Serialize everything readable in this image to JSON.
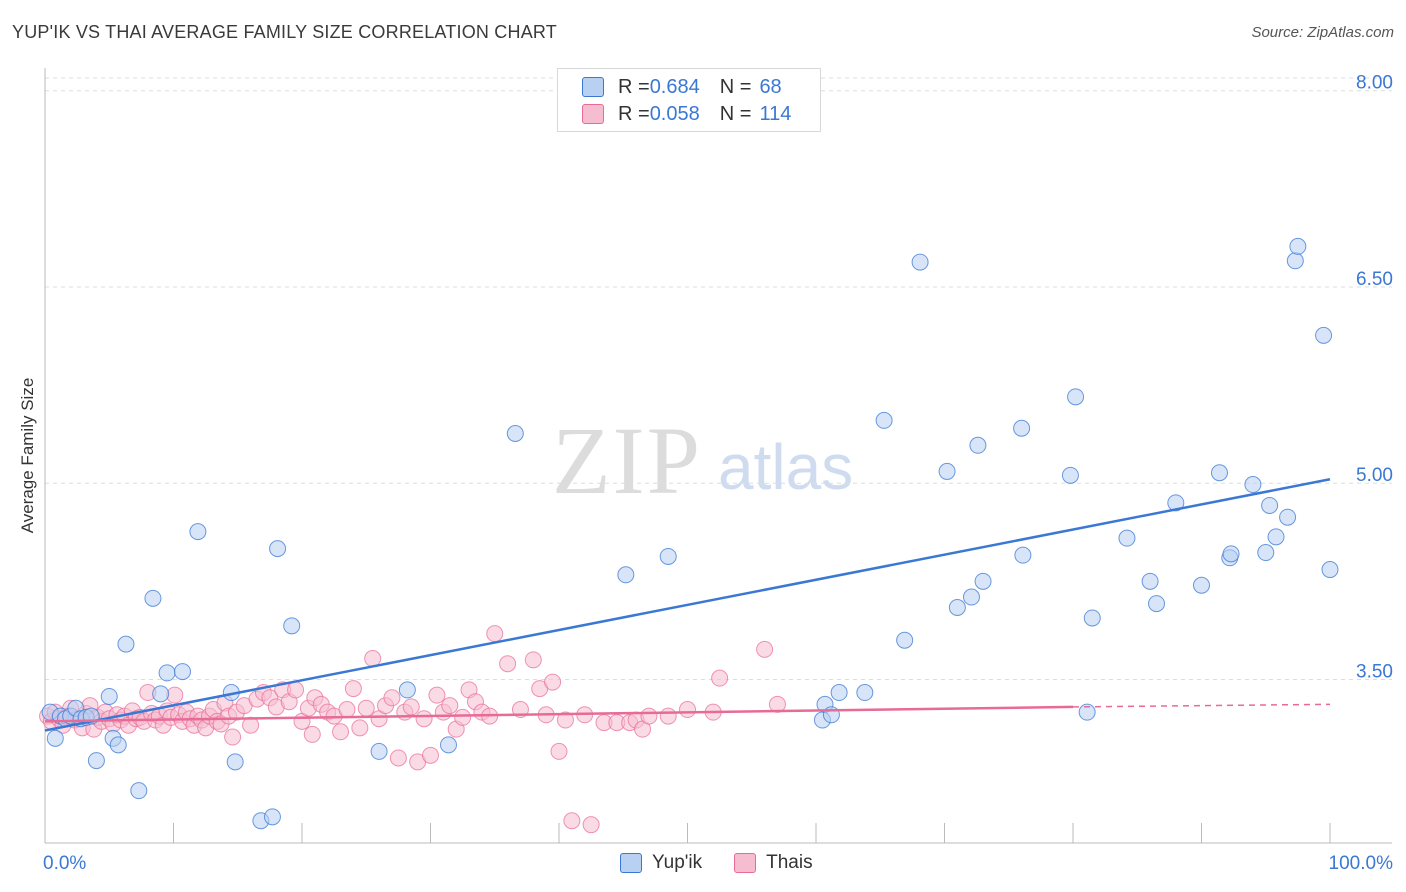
{
  "title": "YUP'IK VS THAI AVERAGE FAMILY SIZE CORRELATION CHART",
  "source": "Source: ZipAtlas.com",
  "watermark": {
    "left": "ZIP",
    "right": "atlas"
  },
  "colors": {
    "blue": "#3a78d4",
    "blue_fill": "#b8d0f2",
    "pink": "#e86a97",
    "pink_fill": "#f6bdd0",
    "tick_label": "#3a78d4"
  },
  "legend": {
    "rows": [
      {
        "r_label": "R = ",
        "r_value": "0.684",
        "n_label": "N = ",
        "n_value": "68"
      },
      {
        "r_label": "R = ",
        "r_value": "0.058",
        "n_label": "N = ",
        "n_value": "114"
      }
    ],
    "series": [
      "Yup'ik",
      "Thais"
    ]
  },
  "chart_data": {
    "type": "scatter",
    "title": "YUP'IK VS THAI AVERAGE FAMILY SIZE CORRELATION CHART",
    "xlabel": "",
    "ylabel": "Average Family Size",
    "xlim": [
      0,
      100
    ],
    "ylim": [
      2.25,
      8.25
    ],
    "x_tick_labels": [
      "0.0%",
      "100.0%"
    ],
    "y_ticks": [
      3.5,
      5.0,
      6.5,
      8.0
    ],
    "y_tick_labels": [
      "3.50",
      "5.00",
      "6.50",
      "8.00"
    ],
    "grid": true,
    "series": [
      {
        "name": "Yup'ik",
        "trend": [
          [
            0,
            3.11
          ],
          [
            100,
            5.03
          ]
        ],
        "points": [
          [
            0.4,
            3.25
          ],
          [
            0.8,
            3.05
          ],
          [
            1.2,
            3.22
          ],
          [
            1.6,
            3.2
          ],
          [
            2.0,
            3.22
          ],
          [
            2.4,
            3.28
          ],
          [
            2.8,
            3.2
          ],
          [
            3.2,
            3.21
          ],
          [
            3.6,
            3.22
          ],
          [
            4.0,
            2.88
          ],
          [
            5.0,
            3.37
          ],
          [
            5.3,
            3.05
          ],
          [
            5.7,
            3.0
          ],
          [
            6.3,
            3.77
          ],
          [
            7.3,
            2.65
          ],
          [
            8.4,
            4.12
          ],
          [
            9.0,
            3.39
          ],
          [
            9.5,
            3.55
          ],
          [
            10.7,
            3.56
          ],
          [
            11.9,
            4.63
          ],
          [
            14.5,
            3.4
          ],
          [
            14.8,
            2.87
          ],
          [
            16.8,
            2.42
          ],
          [
            17.7,
            2.45
          ],
          [
            18.1,
            4.5
          ],
          [
            19.2,
            3.91
          ],
          [
            26.0,
            2.95
          ],
          [
            28.2,
            3.42
          ],
          [
            31.4,
            3.0
          ],
          [
            36.6,
            5.38
          ],
          [
            45.2,
            4.3
          ],
          [
            48.5,
            4.44
          ],
          [
            60.5,
            3.19
          ],
          [
            60.7,
            3.31
          ],
          [
            61.2,
            3.23
          ],
          [
            61.8,
            3.4
          ],
          [
            63.8,
            3.4
          ],
          [
            65.3,
            5.48
          ],
          [
            66.9,
            3.8
          ],
          [
            68.1,
            6.69
          ],
          [
            70.2,
            5.09
          ],
          [
            71.0,
            4.05
          ],
          [
            72.1,
            4.13
          ],
          [
            72.6,
            5.29
          ],
          [
            73.0,
            4.25
          ],
          [
            76.1,
            4.45
          ],
          [
            76.0,
            5.42
          ],
          [
            79.8,
            5.06
          ],
          [
            80.2,
            5.66
          ],
          [
            81.1,
            3.25
          ],
          [
            81.5,
            3.97
          ],
          [
            84.2,
            4.58
          ],
          [
            86.0,
            4.25
          ],
          [
            86.5,
            4.08
          ],
          [
            88.0,
            4.85
          ],
          [
            90.0,
            4.22
          ],
          [
            91.4,
            5.08
          ],
          [
            92.2,
            4.43
          ],
          [
            92.3,
            4.46
          ],
          [
            94.0,
            4.99
          ],
          [
            95.0,
            4.47
          ],
          [
            95.3,
            4.83
          ],
          [
            95.8,
            4.59
          ],
          [
            96.7,
            4.74
          ],
          [
            97.3,
            6.7
          ],
          [
            97.5,
            6.81
          ],
          [
            99.5,
            6.13
          ],
          [
            100.0,
            4.34
          ]
        ]
      },
      {
        "name": "Thais",
        "trend": [
          [
            0,
            3.18
          ],
          [
            80,
            3.29
          ]
        ],
        "trend_dashed": [
          [
            80,
            3.29
          ],
          [
            100,
            3.31
          ]
        ],
        "points": [
          [
            0.2,
            3.22
          ],
          [
            0.5,
            3.18
          ],
          [
            0.8,
            3.25
          ],
          [
            1.1,
            3.2
          ],
          [
            1.4,
            3.15
          ],
          [
            1.7,
            3.22
          ],
          [
            2.0,
            3.28
          ],
          [
            2.3,
            3.19
          ],
          [
            2.6,
            3.2
          ],
          [
            2.9,
            3.13
          ],
          [
            3.2,
            3.24
          ],
          [
            3.5,
            3.3
          ],
          [
            3.8,
            3.12
          ],
          [
            4.1,
            3.21
          ],
          [
            4.4,
            3.18
          ],
          [
            4.7,
            3.25
          ],
          [
            5.0,
            3.2
          ],
          [
            5.3,
            3.16
          ],
          [
            5.6,
            3.23
          ],
          [
            5.9,
            3.19
          ],
          [
            6.2,
            3.22
          ],
          [
            6.5,
            3.15
          ],
          [
            6.8,
            3.26
          ],
          [
            7.1,
            3.2
          ],
          [
            7.4,
            3.21
          ],
          [
            7.7,
            3.18
          ],
          [
            8.0,
            3.4
          ],
          [
            8.3,
            3.24
          ],
          [
            8.6,
            3.19
          ],
          [
            8.9,
            3.22
          ],
          [
            9.2,
            3.15
          ],
          [
            9.5,
            3.26
          ],
          [
            9.8,
            3.21
          ],
          [
            10.1,
            3.38
          ],
          [
            10.4,
            3.23
          ],
          [
            10.7,
            3.18
          ],
          [
            11.0,
            3.25
          ],
          [
            11.3,
            3.2
          ],
          [
            11.6,
            3.15
          ],
          [
            11.9,
            3.22
          ],
          [
            12.2,
            3.19
          ],
          [
            12.5,
            3.13
          ],
          [
            12.8,
            3.22
          ],
          [
            13.1,
            3.27
          ],
          [
            13.4,
            3.18
          ],
          [
            13.7,
            3.16
          ],
          [
            14.0,
            3.32
          ],
          [
            14.3,
            3.22
          ],
          [
            14.6,
            3.06
          ],
          [
            14.9,
            3.25
          ],
          [
            15.5,
            3.3
          ],
          [
            16.0,
            3.15
          ],
          [
            16.5,
            3.35
          ],
          [
            17.0,
            3.4
          ],
          [
            17.5,
            3.36
          ],
          [
            18.0,
            3.29
          ],
          [
            18.5,
            3.42
          ],
          [
            19.0,
            3.33
          ],
          [
            19.5,
            3.42
          ],
          [
            20.0,
            3.18
          ],
          [
            20.5,
            3.28
          ],
          [
            21.0,
            3.36
          ],
          [
            21.5,
            3.31
          ],
          [
            22.0,
            3.25
          ],
          [
            22.5,
            3.22
          ],
          [
            23.0,
            3.1
          ],
          [
            23.5,
            3.27
          ],
          [
            24.0,
            3.43
          ],
          [
            24.5,
            3.13
          ],
          [
            25.0,
            3.28
          ],
          [
            25.5,
            3.66
          ],
          [
            26.0,
            3.2
          ],
          [
            26.5,
            3.3
          ],
          [
            27.0,
            3.36
          ],
          [
            27.5,
            2.9
          ],
          [
            28.0,
            3.25
          ],
          [
            28.5,
            3.29
          ],
          [
            29.0,
            2.87
          ],
          [
            29.5,
            3.2
          ],
          [
            30.0,
            2.92
          ],
          [
            30.5,
            3.38
          ],
          [
            31.0,
            3.25
          ],
          [
            31.5,
            3.3
          ],
          [
            32.0,
            3.12
          ],
          [
            32.5,
            3.21
          ],
          [
            33.0,
            3.42
          ],
          [
            33.5,
            3.33
          ],
          [
            34.0,
            3.25
          ],
          [
            35.0,
            3.85
          ],
          [
            36.0,
            3.62
          ],
          [
            37.0,
            3.27
          ],
          [
            38.0,
            3.65
          ],
          [
            38.5,
            3.43
          ],
          [
            39.0,
            3.23
          ],
          [
            39.5,
            3.48
          ],
          [
            40.0,
            2.95
          ],
          [
            40.5,
            3.19
          ],
          [
            41.0,
            2.42
          ],
          [
            42.0,
            3.23
          ],
          [
            42.5,
            2.39
          ],
          [
            43.5,
            3.17
          ],
          [
            44.5,
            3.17
          ],
          [
            45.5,
            3.17
          ],
          [
            46.0,
            3.19
          ],
          [
            46.5,
            3.12
          ],
          [
            47.0,
            3.22
          ],
          [
            48.5,
            3.22
          ],
          [
            50.0,
            3.27
          ],
          [
            52.0,
            3.25
          ],
          [
            52.5,
            3.51
          ],
          [
            56.0,
            3.73
          ],
          [
            57.0,
            3.31
          ],
          [
            20.8,
            3.08
          ],
          [
            34.6,
            3.22
          ]
        ]
      }
    ]
  }
}
